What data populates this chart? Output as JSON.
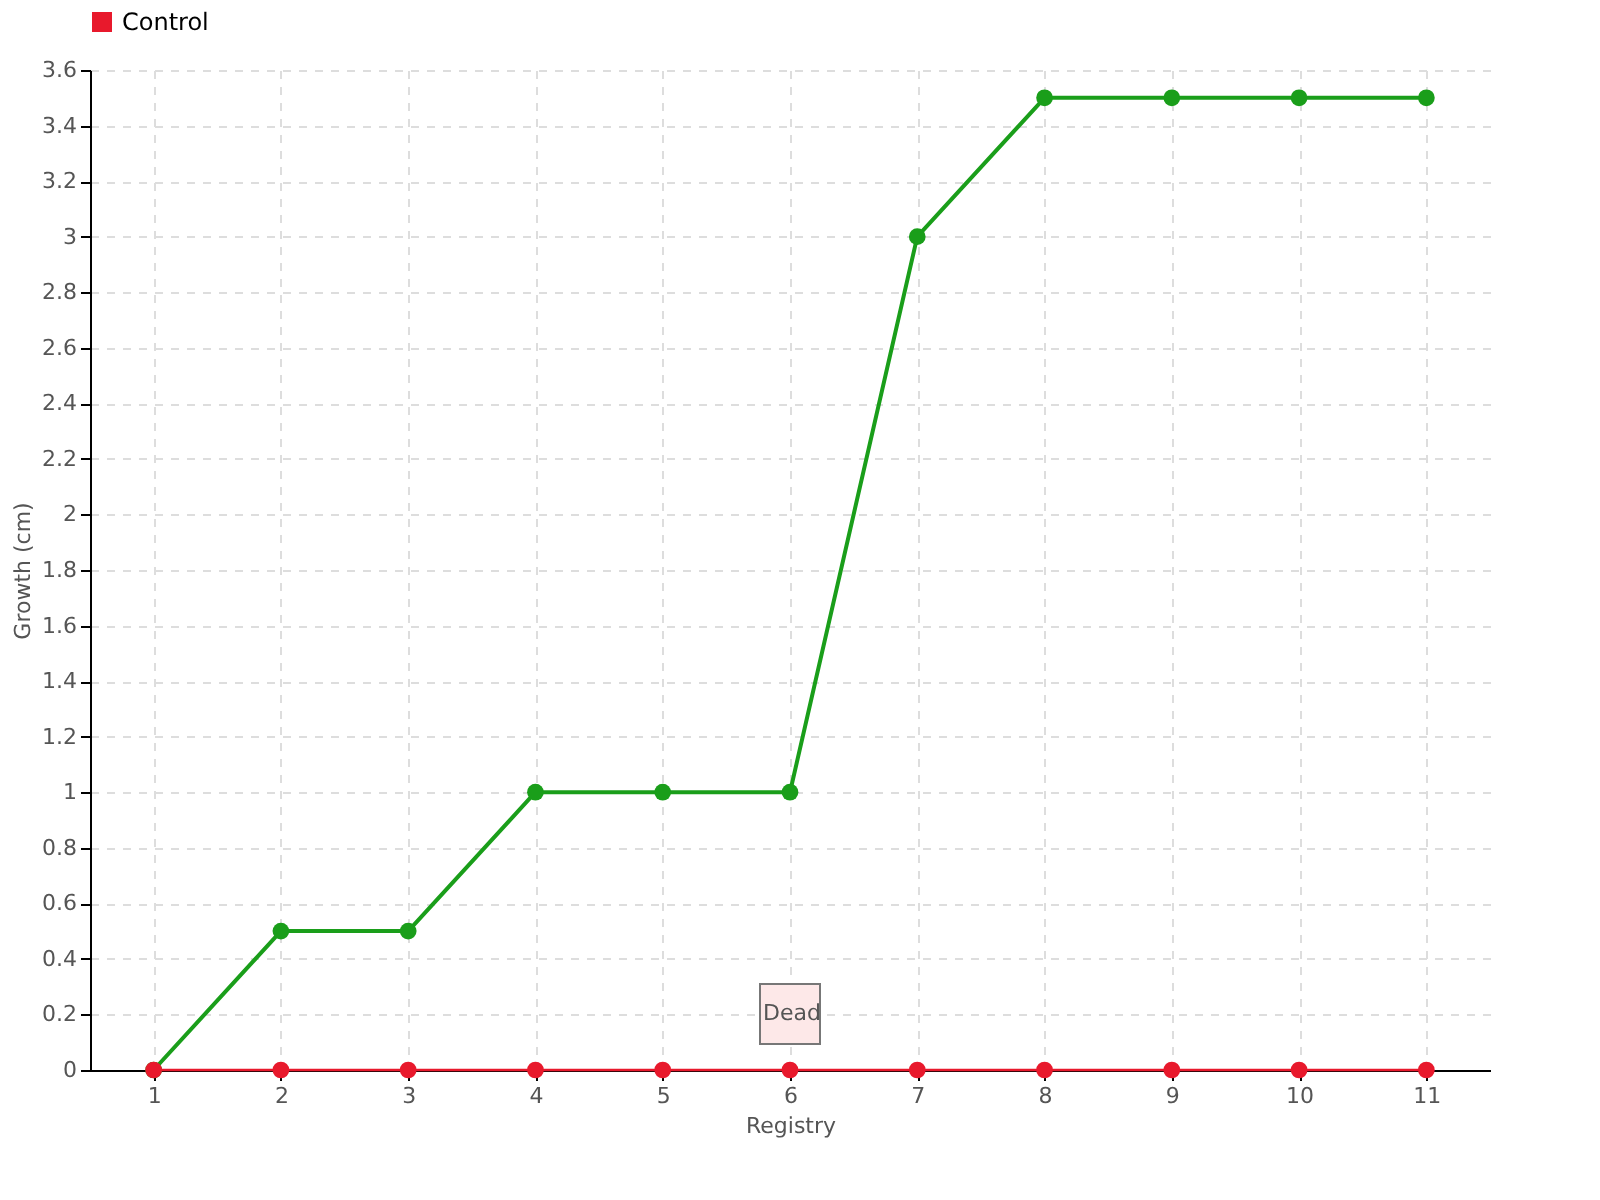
{
  "chart_data": {
    "type": "line",
    "xlabel": "Registry",
    "ylabel": "Growth (cm)",
    "categories": [
      "1",
      "2",
      "3",
      "4",
      "5",
      "6",
      "7",
      "8",
      "9",
      "10",
      "11"
    ],
    "series": [
      {
        "color": "#1a9e1a",
        "values": [
          0,
          0.5,
          0.5,
          1,
          1,
          1,
          3,
          3.5,
          3.5,
          3.5,
          3.5
        ]
      },
      {
        "name": "Control",
        "color": "#e8192c",
        "values": [
          0,
          0,
          0,
          0,
          0,
          0,
          0,
          0,
          0,
          0,
          0
        ]
      }
    ],
    "ylim": [
      0,
      3.6
    ],
    "yticks": [
      0,
      0.2,
      0.4,
      0.6,
      0.8,
      1,
      1.2,
      1.4,
      1.6,
      1.8,
      2,
      2.2,
      2.4,
      2.6,
      2.8,
      3,
      3.2,
      3.4,
      3.6
    ],
    "grid": true,
    "legend": "top left",
    "marker": "circle",
    "line_style": "solid",
    "annotations": [
      {
        "text": "Dead",
        "x": "6",
        "y": 0
      }
    ]
  }
}
